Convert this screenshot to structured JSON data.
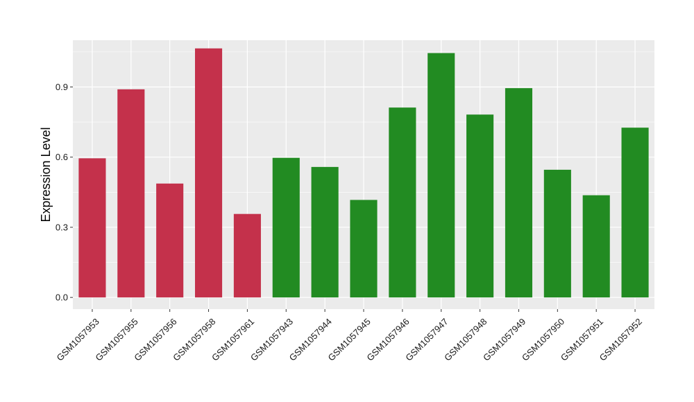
{
  "chart_data": {
    "type": "bar",
    "ylabel": "Expression Level",
    "xlabel": "",
    "ylim": [
      -0.05,
      1.1
    ],
    "yticks": [
      0.0,
      0.3,
      0.6,
      0.9
    ],
    "ytick_labels": [
      "0.0",
      "0.3",
      "0.6",
      "0.9"
    ],
    "grid": true,
    "panel_background": "#EBEBEB",
    "gridline_color": "#FFFFFF",
    "categories": [
      "GSM1057953",
      "GSM1057955",
      "GSM1057956",
      "GSM1057958",
      "GSM1057961",
      "GSM1057943",
      "GSM1057944",
      "GSM1057945",
      "GSM1057946",
      "GSM1057947",
      "GSM1057948",
      "GSM1057949",
      "GSM1057950",
      "GSM1057951",
      "GSM1057952"
    ],
    "values": [
      0.595,
      0.89,
      0.487,
      1.065,
      0.357,
      0.597,
      0.558,
      0.417,
      0.812,
      1.045,
      0.782,
      0.895,
      0.546,
      0.437,
      0.726
    ],
    "bar_colors": [
      "#C4314B",
      "#C4314B",
      "#C4314B",
      "#C4314B",
      "#C4314B",
      "#228B22",
      "#228B22",
      "#228B22",
      "#228B22",
      "#228B22",
      "#228B22",
      "#228B22",
      "#228B22",
      "#228B22",
      "#228B22"
    ]
  }
}
